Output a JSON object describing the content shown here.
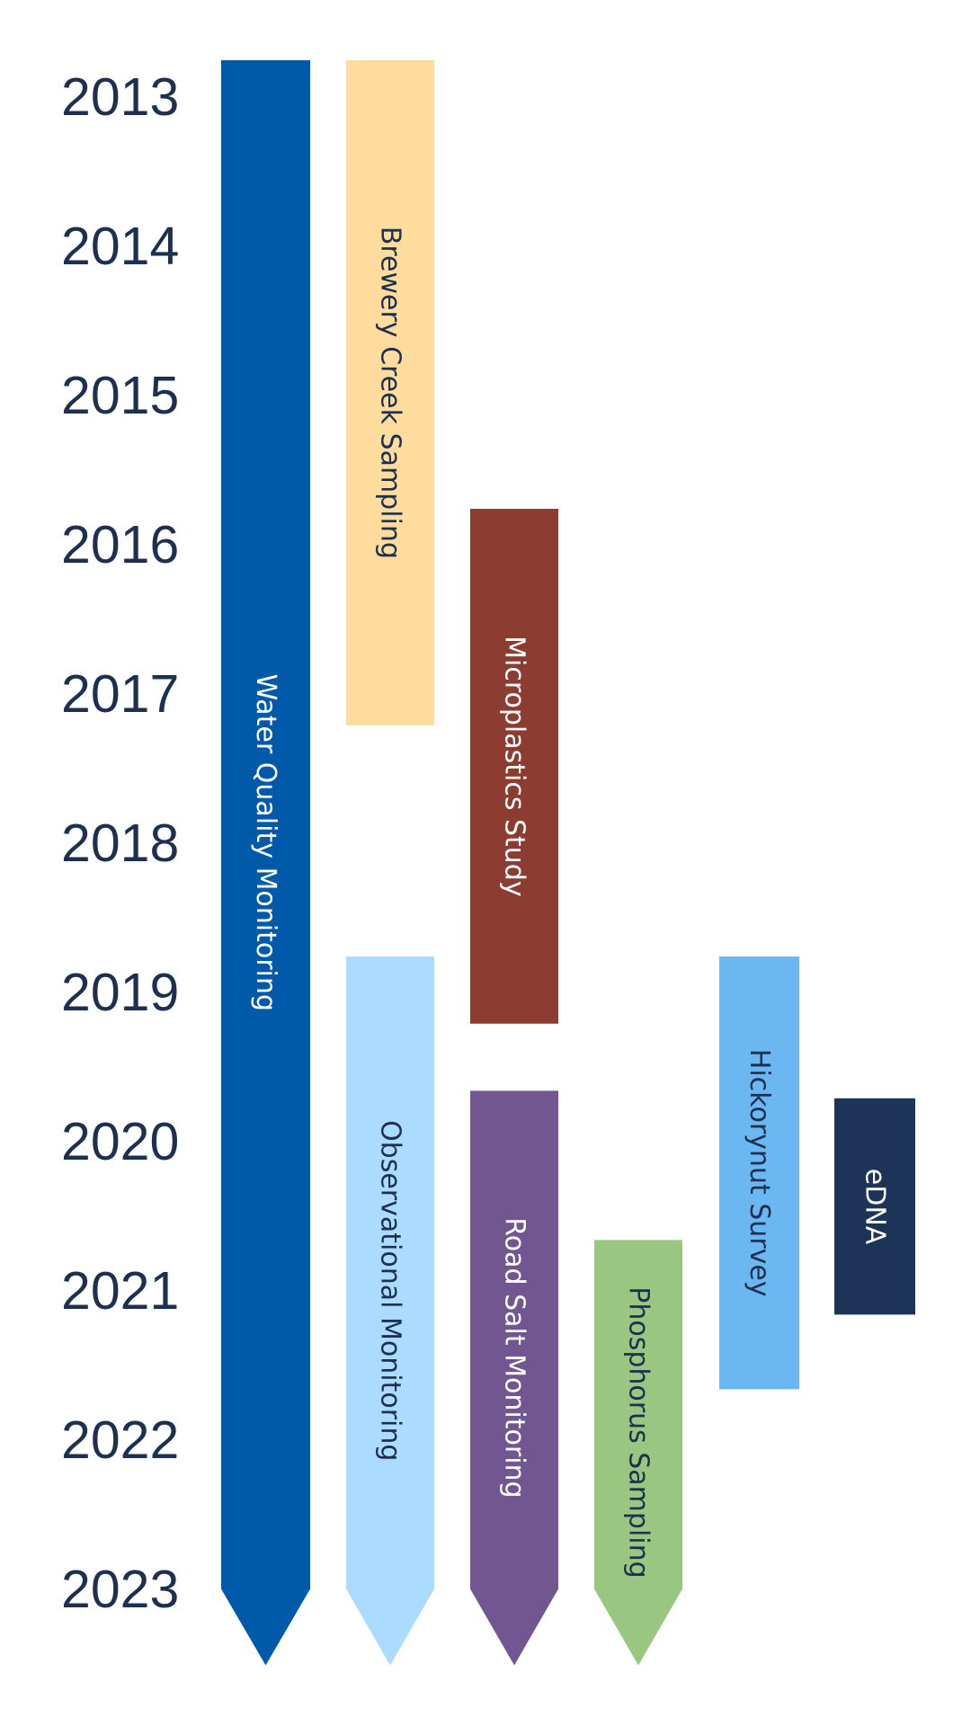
{
  "years": [
    "2013",
    "2014",
    "2015",
    "2016",
    "2017",
    "2018",
    "2019",
    "2020",
    "2021",
    "2022",
    "2023"
  ],
  "projects": [
    {
      "label": "Water Quality Monitoring",
      "start": 2013.0,
      "end": 2023.75,
      "ongoing": true,
      "color": "#005aa9",
      "text_color": "#ffffff"
    },
    {
      "label": "Brewery Creek Sampling",
      "start": 2013.0,
      "end": 2017.45,
      "ongoing": false,
      "color": "#fedc9d",
      "text_color": "#1e2f4f"
    },
    {
      "label": "Microplastics Study",
      "start": 2016.0,
      "end": 2019.45,
      "ongoing": false,
      "color": "#8d3c32",
      "text_color": "#ffffff"
    },
    {
      "label": "Observational Monitoring",
      "start": 2019.0,
      "end": 2023.75,
      "ongoing": true,
      "color": "#abdcff",
      "text_color": "#1e2f4f"
    },
    {
      "label": "Road Salt Monitoring",
      "start": 2019.9,
      "end": 2023.75,
      "ongoing": true,
      "color": "#715692",
      "text_color": "#ffffff"
    },
    {
      "label": "Phosphorus Sampling",
      "start": 2020.9,
      "end": 2023.75,
      "ongoing": true,
      "color": "#99c781",
      "text_color": "#1e2f4f"
    },
    {
      "label": "Hickorynut Survey",
      "start": 2019.0,
      "end": 2021.9,
      "ongoing": false,
      "color": "#6bb7f2",
      "text_color": "#1e2f4f"
    },
    {
      "label": "eDNA",
      "start": 2019.95,
      "end": 2021.4,
      "ongoing": false,
      "color": "#1e3358",
      "text_color": "#ffffff"
    }
  ]
}
